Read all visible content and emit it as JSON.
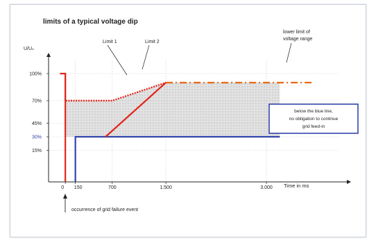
{
  "chart_data": {
    "type": "line",
    "title": "limits of a typical voltage dip",
    "ylabel": "U/Uₙ",
    "xlabel": "Time in ms",
    "x_ticks": [
      {
        "value": 0,
        "label": "0"
      },
      {
        "value": 150,
        "label": "150"
      },
      {
        "value": 700,
        "label": "700"
      },
      {
        "value": 1500,
        "label": "1.500"
      },
      {
        "value": 3000,
        "label": "3.000"
      }
    ],
    "y_ticks": [
      {
        "value": 100,
        "label": "100%"
      },
      {
        "value": 70,
        "label": "70%"
      },
      {
        "value": 45,
        "label": "45%"
      },
      {
        "value": 30,
        "label": "30%",
        "color": "#3344aa"
      },
      {
        "value": 15,
        "label": "15%"
      }
    ],
    "xlim": [
      -250,
      4200
    ],
    "ylim": [
      -20,
      120
    ],
    "series": [
      {
        "key": "fault_red",
        "points": [
          [
            -80,
            100
          ],
          [
            0,
            100
          ],
          [
            0,
            -20
          ]
        ],
        "color": "#e0251b",
        "style": "solid"
      },
      {
        "key": "fault_blue",
        "points": [
          [
            150,
            -20
          ],
          [
            150,
            30
          ],
          [
            3200,
            30
          ]
        ],
        "color": "#3344aa",
        "style": "solid"
      },
      {
        "key": "limit_1",
        "points": [
          [
            0,
            100
          ],
          [
            0,
            70
          ],
          [
            700,
            70
          ],
          [
            1500,
            90
          ]
        ],
        "color": "#e0251b",
        "style": "dotted"
      },
      {
        "key": "limit_2",
        "points": [
          [
            600,
            30
          ],
          [
            1500,
            90
          ]
        ],
        "color": "#e0251b",
        "style": "solid"
      },
      {
        "key": "lower_limit",
        "points": [
          [
            1500,
            90
          ],
          [
            3700,
            90
          ]
        ],
        "color": "#e86a16",
        "style": "dashdot"
      }
    ],
    "shaded_region": [
      [
        0,
        30
      ],
      [
        0,
        70
      ],
      [
        700,
        70
      ],
      [
        1500,
        90
      ],
      [
        3200,
        90
      ],
      [
        3200,
        30
      ]
    ],
    "annotations": [
      {
        "key": "limit_1",
        "text": "Limit 1"
      },
      {
        "key": "limit_2",
        "text": "Limit 2"
      },
      {
        "key": "lower_limit",
        "lines": [
          "lower limit of",
          "voltage range"
        ]
      },
      {
        "key": "blue_box",
        "lines": [
          "below the blue line,",
          "no obligation to continue",
          "grid feed-in"
        ],
        "color": "#3344aa"
      },
      {
        "key": "fault_event",
        "text": "occurrence of grid failure event"
      }
    ],
    "grid": true,
    "legend": "none"
  }
}
